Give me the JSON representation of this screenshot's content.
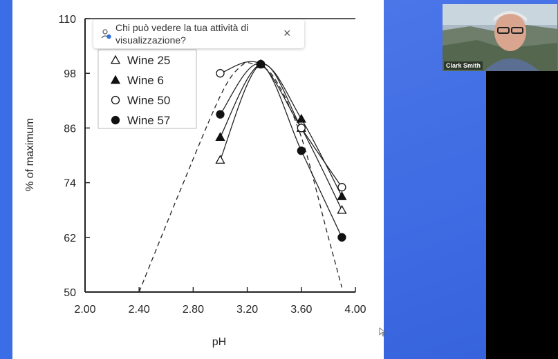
{
  "popup": {
    "text": "Chi può vedere la tua attività di visualizzazione?",
    "close_symbol": "×"
  },
  "video": {
    "participant_name": "Clark Smith"
  },
  "chart_data": {
    "type": "line",
    "xlabel": "pH",
    "ylabel": "% of maximum",
    "xlim": [
      2.0,
      4.0
    ],
    "ylim": [
      50,
      110
    ],
    "x_ticks": [
      "2.00",
      "2.40",
      "2.80",
      "3.20",
      "3.60",
      "4.00"
    ],
    "y_ticks": [
      "50",
      "62",
      "74",
      "86",
      "98",
      "110"
    ],
    "series": [
      {
        "name": "Wine 25",
        "marker": "triangle-open",
        "x": [
          3.0,
          3.3,
          3.6,
          3.9
        ],
        "y": [
          79,
          100,
          86,
          68
        ]
      },
      {
        "name": "Wine 6",
        "marker": "triangle-filled",
        "x": [
          3.0,
          3.3,
          3.6,
          3.9
        ],
        "y": [
          84,
          100,
          88,
          71
        ]
      },
      {
        "name": "Wine 50",
        "marker": "circle-open",
        "x": [
          3.0,
          3.3,
          3.6,
          3.9
        ],
        "y": [
          98,
          100,
          86,
          73
        ]
      },
      {
        "name": "Wine 57",
        "marker": "circle-filled",
        "x": [
          3.0,
          3.3,
          3.6,
          3.9
        ],
        "y": [
          89,
          100,
          81,
          62
        ]
      }
    ],
    "dashed_curve": {
      "x": [
        2.4,
        2.7,
        3.0,
        3.15,
        3.25,
        3.4,
        3.6,
        3.8,
        3.9
      ],
      "y": [
        50,
        72,
        93,
        99.5,
        100,
        97,
        84,
        62,
        51
      ]
    },
    "legend": "top-left",
    "grid": false
  }
}
